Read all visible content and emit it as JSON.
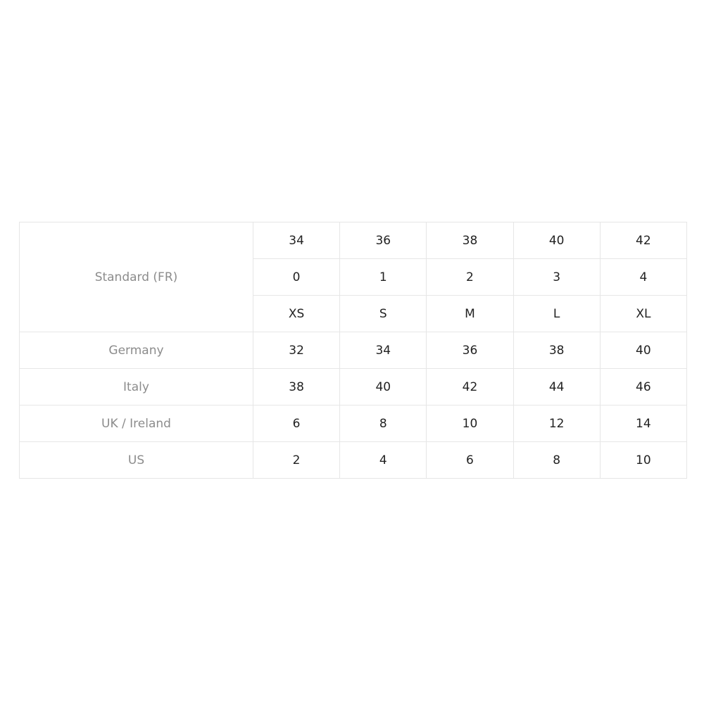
{
  "table": {
    "rows": [
      {
        "label": "Standard (FR)",
        "values": [
          [
            34,
            36,
            38,
            40,
            42
          ],
          [
            0,
            1,
            2,
            3,
            4
          ],
          [
            "XS",
            "S",
            "M",
            "L",
            "XL"
          ]
        ]
      },
      {
        "label": "Germany",
        "values": [
          [
            32,
            34,
            36,
            38,
            40
          ]
        ]
      },
      {
        "label": "Italy",
        "values": [
          [
            38,
            40,
            42,
            44,
            46
          ]
        ]
      },
      {
        "label": "UK / Ireland",
        "values": [
          [
            6,
            8,
            10,
            12,
            14
          ]
        ]
      },
      {
        "label": "US",
        "values": [
          [
            2,
            4,
            6,
            8,
            10
          ]
        ]
      }
    ]
  }
}
